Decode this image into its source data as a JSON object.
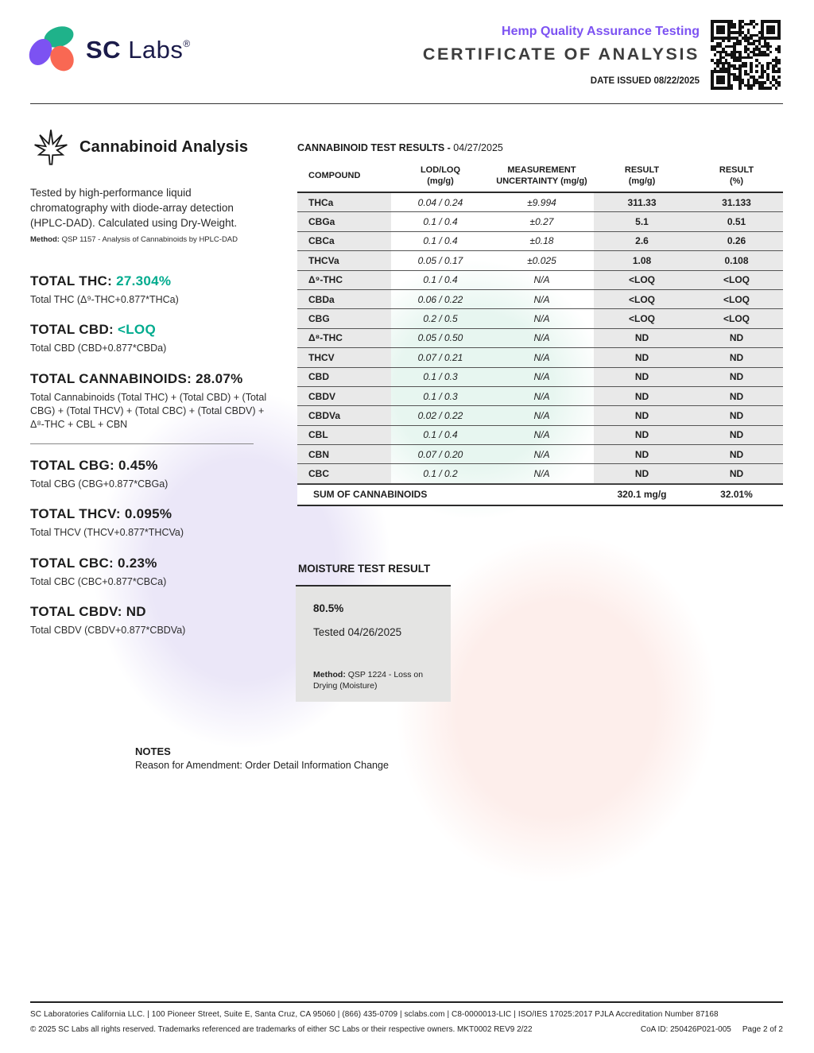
{
  "colors": {
    "brand_navy": "#1b1b4a",
    "brand_purple": "#7c52f2",
    "brand_green": "#1fb28a",
    "brand_coral": "#f96853",
    "accent_green": "#00ab8e"
  },
  "header": {
    "brand_sc": "SC",
    "brand_labs": " Labs",
    "registered": "®",
    "program": "Hemp Quality Assurance Testing",
    "title": "CERTIFICATE OF ANALYSIS",
    "date_issued": "DATE ISSUED 08/22/2025"
  },
  "analysis": {
    "title": "Cannabinoid Analysis",
    "description": "Tested by high-performance liquid chromatography with diode-array detection (HPLC-DAD). Calculated using Dry-Weight.",
    "method_label": "Method:",
    "method": " QSP 1157 - Analysis of Cannabinoids by HPLC-DAD"
  },
  "totals_primary": [
    {
      "label": "TOTAL THC:",
      "value": "27.304%",
      "color": "green",
      "formula": "Total THC (Δ⁹-THC+0.877*THCa)"
    },
    {
      "label": "TOTAL CBD:",
      "value": "<LOQ",
      "color": "green",
      "formula": "Total CBD (CBD+0.877*CBDa)"
    },
    {
      "label": "TOTAL CANNABINOIDS:",
      "value": "28.07%",
      "color": "dark",
      "formula": "Total Cannabinoids (Total THC) + (Total CBD) + (Total CBG) + (Total THCV) + (Total CBC) + (Total CBDV) + Δ⁸-THC + CBL + CBN"
    }
  ],
  "totals_secondary": [
    {
      "label": "TOTAL CBG:",
      "value": "0.45%",
      "color": "dark",
      "formula": "Total CBG (CBG+0.877*CBGa)"
    },
    {
      "label": "TOTAL THCV:",
      "value": "0.095%",
      "color": "dark",
      "formula": "Total THCV (THCV+0.877*THCVa)"
    },
    {
      "label": "TOTAL CBC:",
      "value": "0.23%",
      "color": "dark",
      "formula": "Total CBC (CBC+0.877*CBCa)"
    },
    {
      "label": "TOTAL CBDV:",
      "value": "ND",
      "color": "dark",
      "formula": "Total CBDV (CBDV+0.877*CBDVa)"
    }
  ],
  "results_table": {
    "title": "CANNABINOID TEST RESULTS - ",
    "title_date": "04/27/2025",
    "columns": [
      "COMPOUND",
      "LOD/LOQ\n(mg/g)",
      "MEASUREMENT\nUNCERTAINTY (mg/g)",
      "RESULT\n(mg/g)",
      "RESULT\n(%)"
    ],
    "rows": [
      [
        "THCa",
        "0.04 / 0.24",
        "±9.994",
        "311.33",
        "31.133"
      ],
      [
        "CBGa",
        "0.1 / 0.4",
        "±0.27",
        "5.1",
        "0.51"
      ],
      [
        "CBCa",
        "0.1 / 0.4",
        "±0.18",
        "2.6",
        "0.26"
      ],
      [
        "THCVa",
        "0.05 / 0.17",
        "±0.025",
        "1.08",
        "0.108"
      ],
      [
        "Δ⁹-THC",
        "0.1 / 0.4",
        "N/A",
        "<LOQ",
        "<LOQ"
      ],
      [
        "CBDa",
        "0.06 / 0.22",
        "N/A",
        "<LOQ",
        "<LOQ"
      ],
      [
        "CBG",
        "0.2 / 0.5",
        "N/A",
        "<LOQ",
        "<LOQ"
      ],
      [
        "Δ⁸-THC",
        "0.05 / 0.50",
        "N/A",
        "ND",
        "ND"
      ],
      [
        "THCV",
        "0.07 / 0.21",
        "N/A",
        "ND",
        "ND"
      ],
      [
        "CBD",
        "0.1 / 0.3",
        "N/A",
        "ND",
        "ND"
      ],
      [
        "CBDV",
        "0.1 / 0.3",
        "N/A",
        "ND",
        "ND"
      ],
      [
        "CBDVa",
        "0.02 / 0.22",
        "N/A",
        "ND",
        "ND"
      ],
      [
        "CBL",
        "0.1 / 0.4",
        "N/A",
        "ND",
        "ND"
      ],
      [
        "CBN",
        "0.07 / 0.20",
        "N/A",
        "ND",
        "ND"
      ],
      [
        "CBC",
        "0.1 / 0.2",
        "N/A",
        "ND",
        "ND"
      ]
    ],
    "sum_label": "SUM OF CANNABINOIDS",
    "sum_mg": "320.1 mg/g",
    "sum_pct": "32.01%"
  },
  "moisture": {
    "title": "MOISTURE TEST RESULT",
    "value": "80.5%",
    "tested": "Tested 04/26/2025",
    "method_label": "Method:",
    "method": " QSP 1224 - Loss on Drying (Moisture)"
  },
  "notes": {
    "title": "NOTES",
    "body": "Reason for Amendment: Order Detail Information Change"
  },
  "footer": {
    "line1": "SC Laboratories California LLC. | 100 Pioneer Street, Suite E, Santa Cruz, CA 95060 | (866) 435-0709 | sclabs.com | C8-0000013-LIC | ISO/IES 17025:2017 PJLA Accreditation Number 87168",
    "line2": "© 2025 SC Labs all rights reserved. Trademarks referenced are trademarks of either SC Labs or their respective owners. MKT0002 REV9 2/22",
    "coa_id": "CoA ID: 250426P021-005",
    "page": "Page 2 of 2"
  }
}
